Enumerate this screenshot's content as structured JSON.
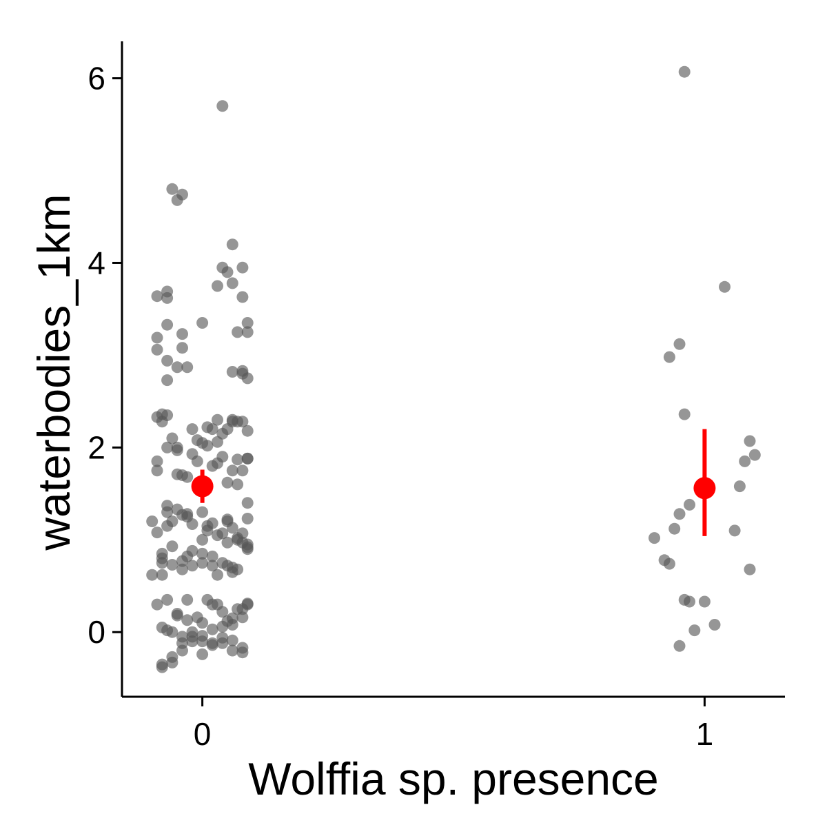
{
  "chart_data": {
    "type": "scatter",
    "xlabel": "Wolffia sp. presence",
    "ylabel": "waterbodies_1km",
    "x_categories": [
      "0",
      "1"
    ],
    "y_ticks": [
      "0",
      "2",
      "4",
      "6"
    ],
    "ylim": [
      -0.7,
      6.4
    ],
    "xlim": [
      -0.16,
      1.16
    ],
    "point_color": "#555555",
    "summary_color": "#ff0000",
    "axis_color": "#000000",
    "grid": false,
    "legend": "none",
    "series": [
      {
        "x": [
          -0.06,
          -0.04,
          -0.05,
          0.04,
          0.0,
          -0.09,
          -0.07,
          -0.07,
          -0.09,
          -0.09,
          -0.07,
          -0.04,
          -0.05,
          -0.07,
          -0.07,
          -0.03,
          -0.09,
          -0.08,
          -0.08,
          -0.06,
          -0.07,
          -0.04,
          -0.02,
          0.0,
          0.01,
          0.03,
          0.05,
          0.06,
          0.08,
          0.09,
          -0.09,
          -0.05,
          -0.03,
          -0.01,
          0.02,
          0.04,
          0.06,
          0.07,
          0.08,
          0.09,
          -0.1,
          -0.07,
          -0.05,
          -0.03,
          0.0,
          0.02,
          0.04,
          0.06,
          0.08,
          0.09,
          -0.09,
          -0.07,
          -0.04,
          -0.02,
          0.01,
          0.03,
          0.05,
          0.07,
          0.09,
          -0.08,
          -0.06,
          -0.04,
          -0.02,
          0.0,
          0.02,
          0.04,
          0.06,
          0.08,
          0.09,
          -0.08,
          -0.06,
          -0.04,
          -0.02,
          0.0,
          0.03,
          0.05,
          0.07,
          0.09,
          -0.09,
          -0.07,
          -0.05,
          -0.03,
          0.0,
          0.02,
          0.04,
          0.06,
          0.08,
          0.09,
          -0.08,
          -0.06,
          -0.04,
          -0.02,
          0.0,
          0.02,
          0.04,
          0.06,
          0.08,
          -0.08,
          -0.06,
          -0.04,
          -0.02,
          0.0,
          0.02,
          0.04,
          0.06,
          0.08,
          -0.08,
          -0.06,
          -0.04,
          -0.02,
          0.0,
          0.02,
          0.04,
          0.06,
          0.08,
          -0.07,
          -0.05,
          -0.03,
          -0.01,
          0.01,
          0.03,
          0.05,
          0.07,
          0.09,
          0.03,
          0.05,
          0.07,
          0.09,
          0.06,
          0.08,
          0.04,
          0.06,
          0.08,
          0.09,
          0.08,
          0.09,
          0.06,
          0.03,
          -0.02,
          0.01,
          -0.05,
          -0.09,
          0.05,
          0.07,
          0.09,
          -0.07,
          -0.03,
          0.01,
          0.05,
          -0.06,
          0.0,
          0.07,
          -0.08,
          -0.03,
          0.02,
          0.06,
          -0.1,
          -0.08,
          0.08,
          0.06,
          -0.05,
          -0.01,
          0.02,
          0.04,
          0.07,
          0.09,
          0.03,
          -0.07,
          -0.04,
          0.0,
          0.05
        ],
        "y": [
          4.8,
          4.74,
          4.68,
          5.7,
          3.35,
          3.64,
          3.62,
          3.33,
          3.19,
          3.06,
          2.94,
          3.08,
          2.87,
          2.73,
          2.35,
          2.87,
          2.33,
          2.36,
          2.28,
          2.1,
          2.0,
          1.7,
          1.93,
          2.05,
          2.22,
          2.3,
          2.2,
          2.28,
          2.28,
          1.88,
          1.85,
          1.71,
          1.68,
          1.85,
          1.8,
          1.9,
          1.75,
          1.87,
          1.75,
          1.88,
          1.2,
          1.3,
          1.33,
          1.25,
          1.3,
          1.18,
          1.07,
          1.13,
          1.07,
          1.23,
          1.08,
          1.15,
          1.27,
          1.17,
          1.1,
          1.05,
          0.97,
          1.0,
          0.9,
          0.85,
          0.93,
          0.77,
          0.72,
          0.85,
          0.82,
          0.75,
          0.7,
          0.97,
          0.92,
          0.62,
          0.73,
          0.68,
          0.88,
          0.75,
          0.62,
          0.72,
          0.68,
          0.95,
          0.3,
          0.35,
          0.18,
          0.13,
          0.1,
          0.3,
          0.22,
          0.15,
          0.25,
          0.31,
          0.05,
          0.0,
          -0.05,
          0.0,
          -0.04,
          0.03,
          0.06,
          0.08,
          0.16,
          -0.35,
          -0.27,
          -0.12,
          -0.05,
          -0.1,
          -0.12,
          -0.12,
          -0.2,
          -0.22,
          -0.38,
          -0.33,
          -0.2,
          -0.1,
          -0.24,
          -0.14,
          -0.06,
          -0.09,
          -0.17,
          0.02,
          0.2,
          0.35,
          0.16,
          0.35,
          0.3,
          0.12,
          0.25,
          0.3,
          3.75,
          3.9,
          3.25,
          3.35,
          4.2,
          3.95,
          3.95,
          3.78,
          3.63,
          3.25,
          2.8,
          2.75,
          2.82,
          1.83,
          2.2,
          2.02,
          1.97,
          1.75,
          1.62,
          1.6,
          1.4,
          1.37,
          1.28,
          1.15,
          1.2,
          1.2,
          1.0,
          1.02,
          0.8,
          0.82,
          0.72,
          0.65,
          0.62,
          0.75,
          2.83,
          2.3,
          2.0,
          2.08,
          2.2,
          2.15,
          2.28,
          2.18,
          2.06,
          3.69,
          3.23,
          1.62,
          1.22
        ]
      },
      {
        "x": [
          0.96,
          1.04,
          0.93,
          0.95,
          0.96,
          1.09,
          1.08,
          1.07,
          1.1,
          0.97,
          1.0,
          1.06,
          0.95,
          0.94,
          0.9,
          0.92,
          0.93,
          1.09,
          0.97,
          0.96,
          1.0,
          1.02,
          0.98,
          0.95
        ],
        "y": [
          6.07,
          3.74,
          2.98,
          3.12,
          2.36,
          2.07,
          1.85,
          1.58,
          1.92,
          1.38,
          1.55,
          1.1,
          1.28,
          1.12,
          1.02,
          0.78,
          0.74,
          0.68,
          0.33,
          0.35,
          0.33,
          0.08,
          0.02,
          -0.15
        ]
      }
    ],
    "summary": [
      {
        "x": 0,
        "mean": 1.58,
        "low": 1.4,
        "high": 1.76
      },
      {
        "x": 1,
        "mean": 1.56,
        "low": 1.04,
        "high": 2.2
      }
    ]
  }
}
